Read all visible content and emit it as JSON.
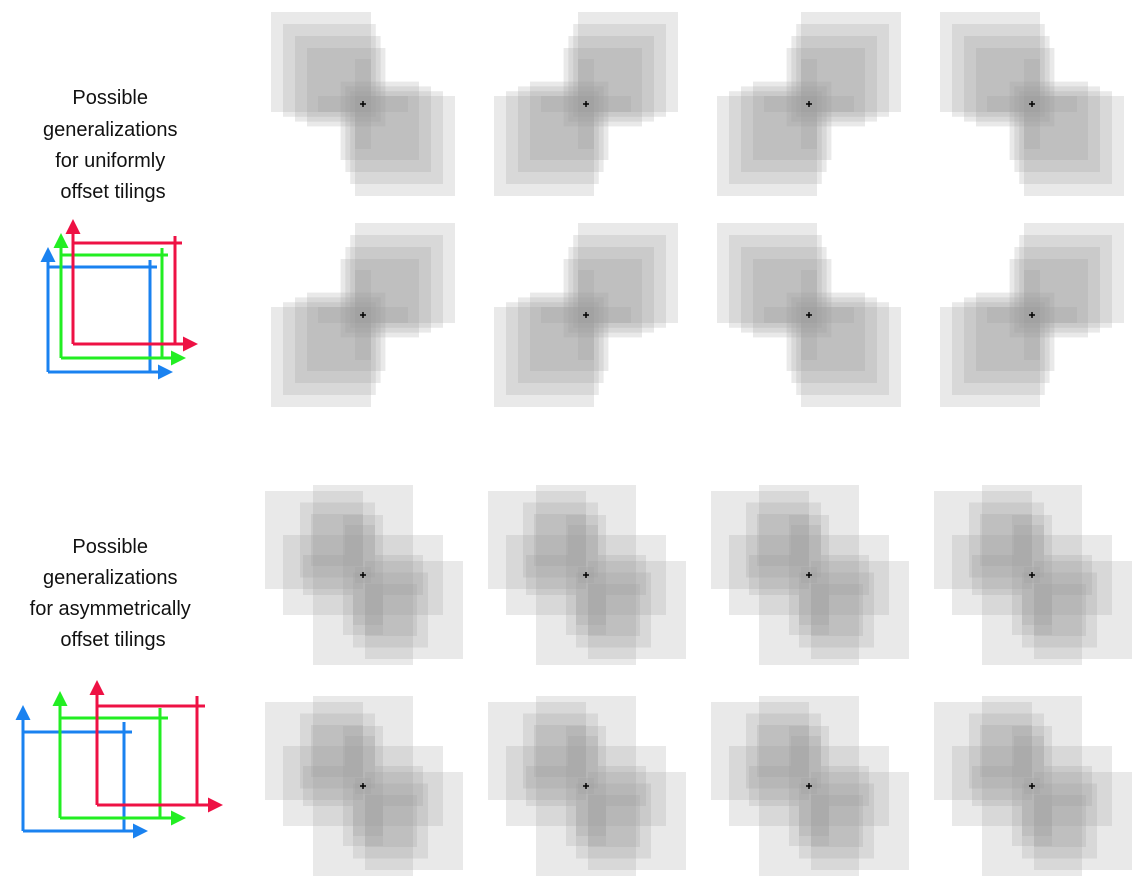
{
  "sections": [
    {
      "caption": [
        "Possible",
        "generalizations",
        "for uniformly",
        "offset tilings"
      ],
      "tilings_diagram": "uniform-offset-tilings-diagram",
      "offset_type": "uniform",
      "tiling_colors": [
        "#1a82f0",
        "#22ee22",
        "#ee1144"
      ]
    },
    {
      "caption": [
        "Possible",
        "generalizations",
        "for asymmetrically",
        "offset tilings"
      ],
      "tilings_diagram": "asymmetric-offset-tilings-diagram",
      "offset_type": "asymmetric",
      "tiling_colors": [
        "#1a82f0",
        "#22ee22",
        "#ee1144"
      ]
    }
  ],
  "grid": {
    "rows_per_section": 2,
    "columns": 4,
    "patterns": 16
  },
  "colors": {
    "tile": "#9a9a9a",
    "background": "#ffffff",
    "marker": "#000000"
  }
}
